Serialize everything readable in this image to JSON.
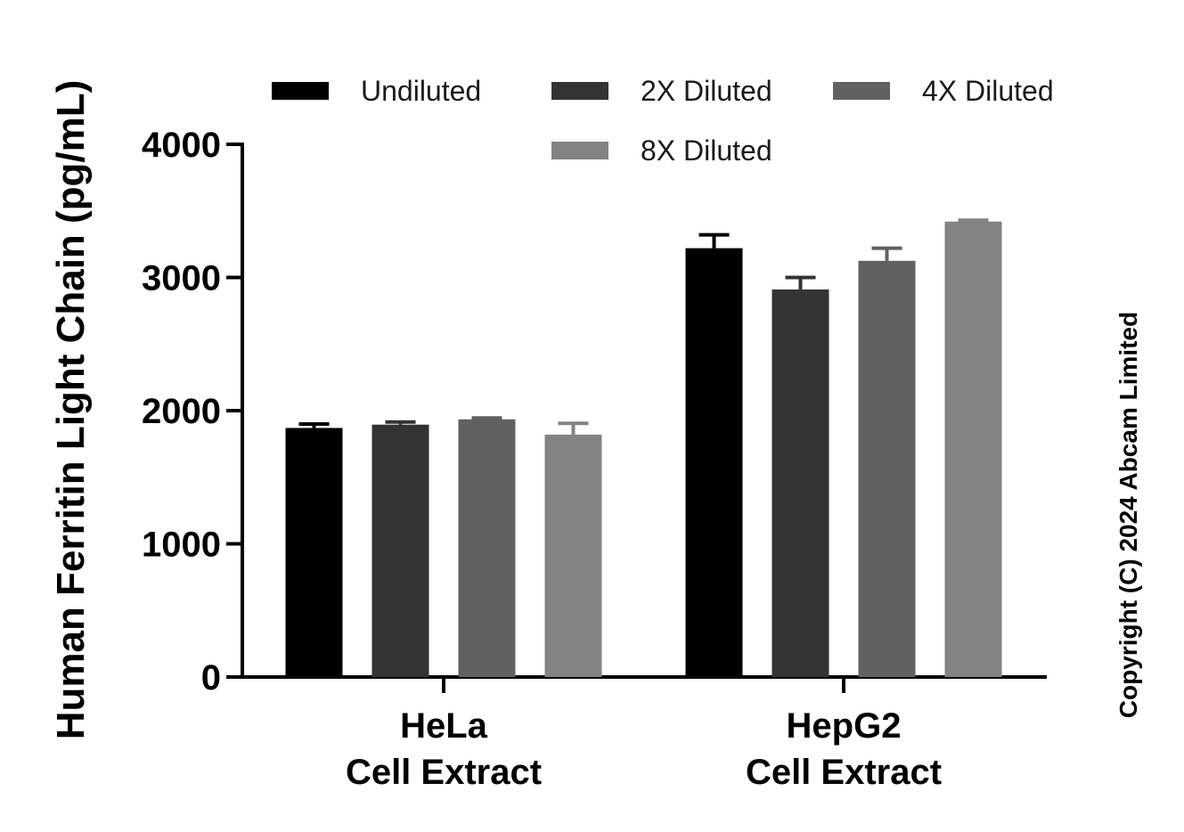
{
  "chart_data": {
    "type": "bar",
    "ylabel": "Human Ferritin Light Chain (pg/mL)",
    "xlabel": "",
    "ylim": [
      0,
      4000
    ],
    "yticks": [
      0,
      1000,
      2000,
      3000,
      4000
    ],
    "categories": [
      [
        "HeLa",
        "Cell Extract"
      ],
      [
        "HepG2",
        "Cell Extract"
      ]
    ],
    "series": [
      {
        "name": "Undiluted",
        "color": "#000000",
        "values": [
          1870,
          3220
        ],
        "errors": [
          30,
          100
        ]
      },
      {
        "name": "2X Diluted",
        "color": "#333333",
        "values": [
          1895,
          2910
        ],
        "errors": [
          20,
          90
        ]
      },
      {
        "name": "4X Diluted",
        "color": "#616161",
        "values": [
          1935,
          3125
        ],
        "errors": [
          10,
          95
        ]
      },
      {
        "name": "8X Diluted",
        "color": "#838383",
        "values": [
          1820,
          3420
        ],
        "errors": [
          85,
          10
        ]
      }
    ],
    "legend_position": "top",
    "grid": false
  },
  "copyright": "Copyright (C) 2024 Abcam Limited"
}
